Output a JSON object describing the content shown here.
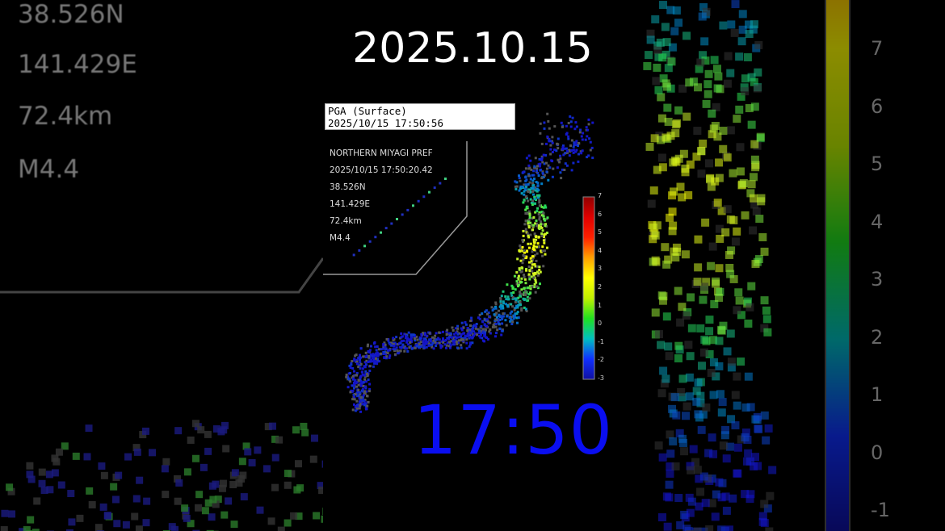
{
  "title_date": "2025.10.15",
  "pga_box": {
    "line1": "PGA (Surface)",
    "line2": "2025/10/15 17:50:56"
  },
  "event": {
    "region": "NORTHERN MIYAGI PREF",
    "origin_time": "2025/10/15 17:50:20.42",
    "latitude": "38.526N",
    "longitude": "141.429E",
    "depth": "72.4km",
    "magnitude": "M4.4"
  },
  "clock": "17:50",
  "colorbar": {
    "ticks": [
      "7",
      "6",
      "5",
      "4",
      "3",
      "2",
      "1",
      "0",
      "-1",
      "-2",
      "-3"
    ],
    "colors": [
      "#8b0000",
      "#ff0000",
      "#ff8000",
      "#ffff00",
      "#00e000",
      "#00c0c0",
      "#0000ff",
      "#00008b"
    ]
  }
}
